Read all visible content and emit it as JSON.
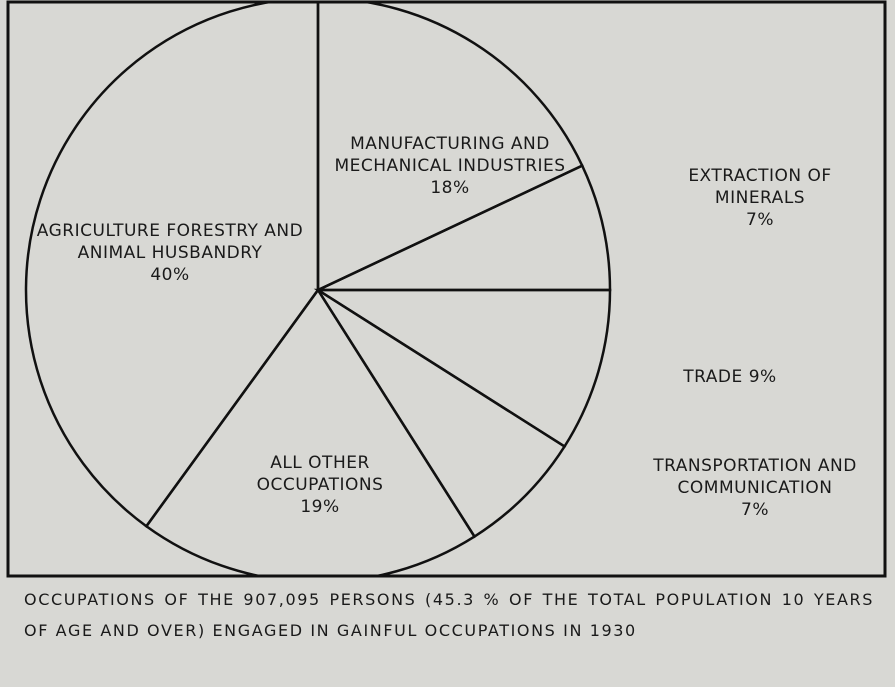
{
  "chart_data": {
    "type": "pie",
    "categories": [
      "MANUFACTURING AND MECHANICAL INDUSTRIES",
      "EXTRACTION OF MINERALS",
      "TRADE",
      "TRANSPORTATION AND COMMUNICATION",
      "ALL OTHER OCCUPATIONS",
      "AGRICULTURE FORESTRY AND ANIMAL HUSBANDRY"
    ],
    "values": [
      18,
      7,
      9,
      7,
      19,
      40
    ],
    "value_labels": [
      "18%",
      "7%",
      "9%",
      "7%",
      "19%",
      "40%"
    ],
    "caption": "OCCUPATIONS OF THE 907,095 PERSONS (45.3 % OF THE TOTAL POPULATION 10 YEARS OF AGE AND OVER) ENGAGED IN GAINFUL OCCUPATIONS IN 1930"
  }
}
